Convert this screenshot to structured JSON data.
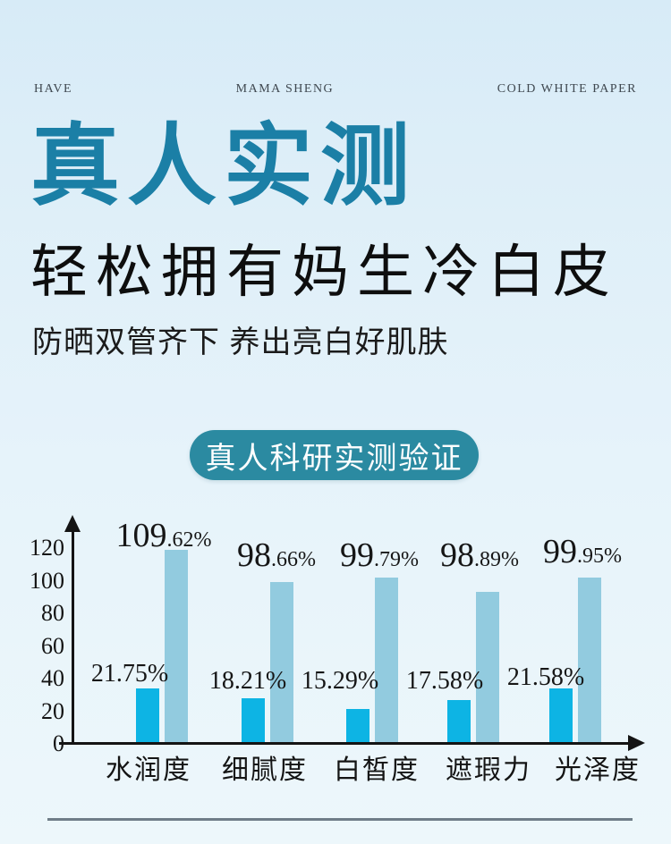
{
  "header": {
    "left": "HAVE",
    "center": "MAMA SHENG",
    "right": "COLD WHITE PAPER"
  },
  "hero": {
    "title": "真人实测",
    "subtitle": "轻松拥有妈生冷白皮",
    "tagline": "防晒双管齐下 养出亮白好肌肤",
    "badge": "真人科研实测验证"
  },
  "colors": {
    "background_top": "#d7ebf7",
    "background_bottom": "#edf7fb",
    "title_accent": "#1b7fa6",
    "badge_background": "#2b8aa1",
    "bar_cyan": "#0db4e4",
    "bar_light_blue": "#92cbdf",
    "axis_black": "#141414",
    "divider_gray": "#6f7d88"
  },
  "chart_data": {
    "type": "bar",
    "title": "真人科研实测验证",
    "categories": [
      "水润度",
      "细腻度",
      "白皙度",
      "遮瑕力",
      "光泽度"
    ],
    "series": [
      {
        "name": "low-value-cyan-bars",
        "color": "#0db4e4",
        "values": [
          21.75,
          18.21,
          15.29,
          17.58,
          21.58
        ],
        "labels": [
          "21.75%",
          "18.21%",
          "15.29%",
          "17.58%",
          "21.58%"
        ],
        "rendered_units": [
          33,
          27,
          20,
          26,
          33
        ]
      },
      {
        "name": "high-value-lightblue-bars",
        "color": "#92cbdf",
        "values": [
          109.62,
          98.66,
          99.79,
          98.89,
          99.95
        ],
        "labels": [
          "109.62%",
          "98.66%",
          "99.79%",
          "98.89%",
          "99.95%"
        ],
        "rendered_units": [
          118,
          98,
          101,
          92,
          101
        ]
      }
    ],
    "y_ticks": [
      0,
      20,
      40,
      60,
      80,
      100,
      120
    ],
    "ylim": [
      0,
      135
    ],
    "xlabel": "",
    "ylabel": "",
    "grid": false,
    "legend": "none"
  }
}
